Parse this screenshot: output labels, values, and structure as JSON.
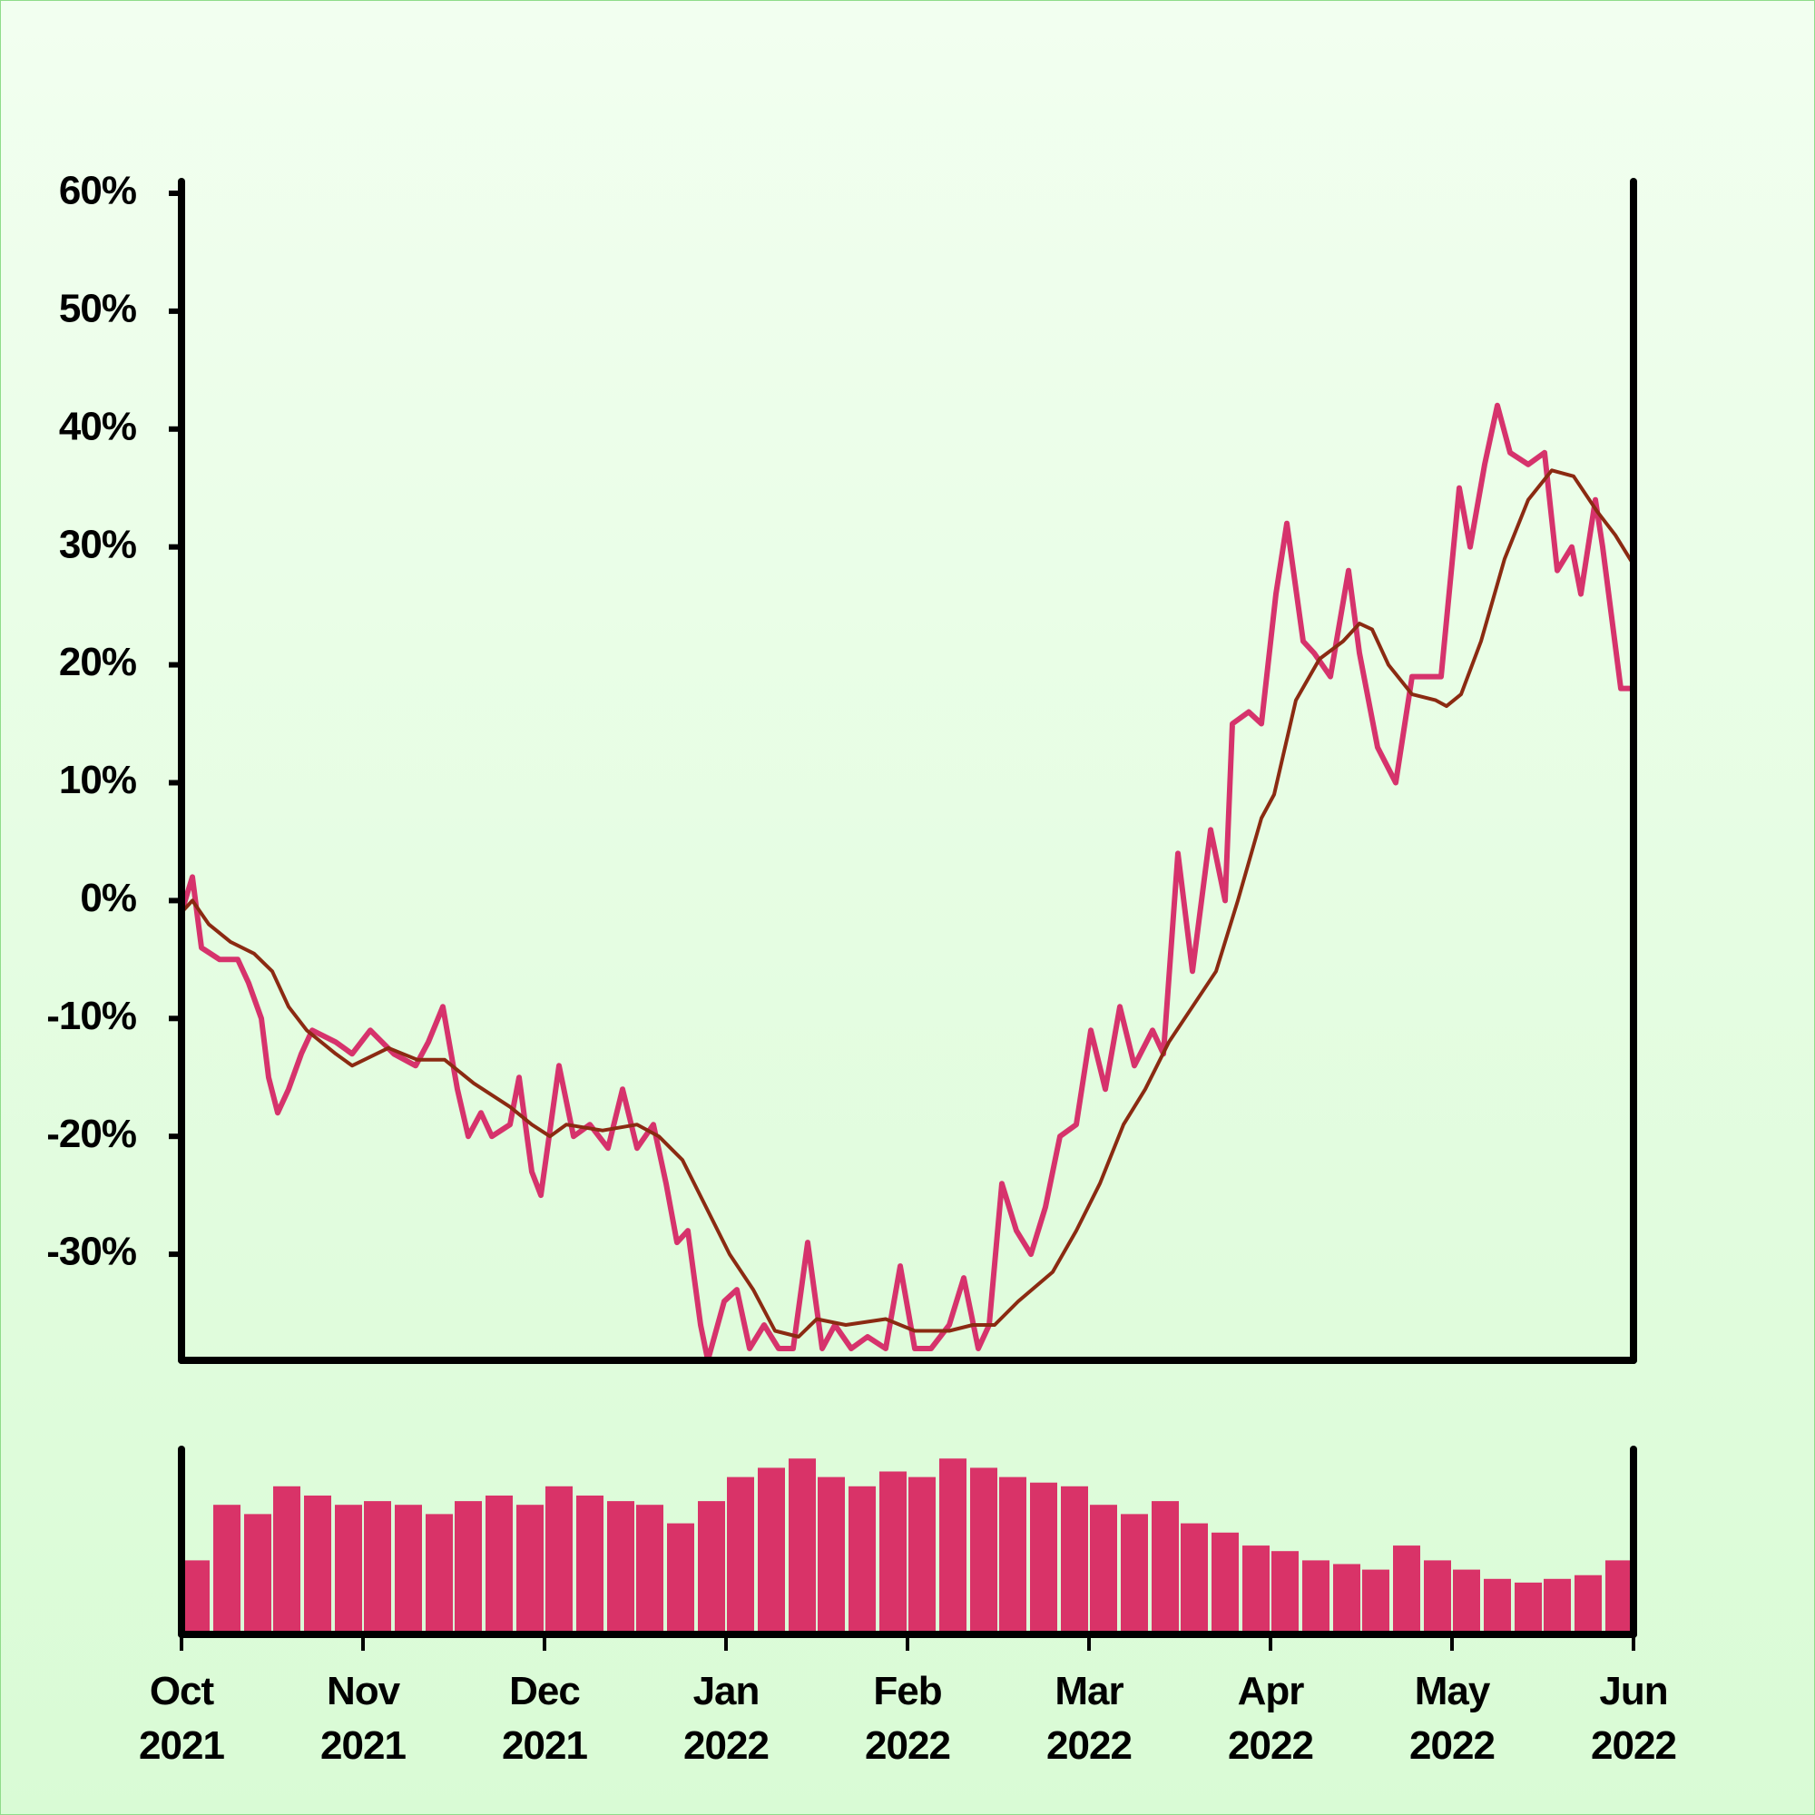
{
  "chart_data": [
    {
      "type": "line",
      "xlim": [
        0,
        8
      ],
      "ylim": [
        -39,
        61
      ],
      "yticks": [
        {
          "value": -30,
          "label": "-30%"
        },
        {
          "value": -20,
          "label": "-20%"
        },
        {
          "value": -10,
          "label": "-10%"
        },
        {
          "value": 0,
          "label": "0%"
        },
        {
          "value": 10,
          "label": "10%"
        },
        {
          "value": 20,
          "label": "20%"
        },
        {
          "value": 30,
          "label": "30%"
        },
        {
          "value": 40,
          "label": "40%"
        },
        {
          "value": 50,
          "label": "50%"
        },
        {
          "value": 60,
          "label": "60%"
        }
      ],
      "series": [
        {
          "color": "#d6336c",
          "width": 6,
          "x": [
            0.0,
            0.06,
            0.11,
            0.21,
            0.31,
            0.37,
            0.44,
            0.48,
            0.53,
            0.59,
            0.66,
            0.72,
            0.85,
            0.94,
            1.04,
            1.17,
            1.29,
            1.36,
            1.44,
            1.52,
            1.58,
            1.65,
            1.71,
            1.81,
            1.86,
            1.93,
            1.98,
            2.08,
            2.16,
            2.25,
            2.35,
            2.43,
            2.51,
            2.6,
            2.67,
            2.73,
            2.79,
            2.86,
            2.9,
            2.99,
            3.06,
            3.13,
            3.21,
            3.29,
            3.37,
            3.45,
            3.53,
            3.6,
            3.69,
            3.78,
            3.88,
            3.96,
            4.04,
            4.13,
            4.23,
            4.31,
            4.39,
            4.45,
            4.52,
            4.6,
            4.68,
            4.76,
            4.84,
            4.93,
            5.01,
            5.09,
            5.17,
            5.25,
            5.35,
            5.41,
            5.49,
            5.57,
            5.67,
            5.75,
            5.79,
            5.88,
            5.95,
            6.03,
            6.09,
            6.18,
            6.24,
            6.33,
            6.43,
            6.49,
            6.59,
            6.69,
            6.78,
            6.88,
            6.94,
            7.04,
            7.1,
            7.18,
            7.25,
            7.32,
            7.42,
            7.51,
            7.58,
            7.66,
            7.71,
            7.79,
            7.83,
            7.93,
            8.0
          ],
          "values": [
            -1,
            2,
            -4,
            -5,
            -5,
            -7,
            -10,
            -15,
            -18,
            -16,
            -13,
            -11,
            -12,
            -13,
            -11,
            -13,
            -14,
            -12,
            -9,
            -16,
            -20,
            -18,
            -20,
            -19,
            -15,
            -23,
            -25,
            -14,
            -20,
            -19,
            -21,
            -16,
            -21,
            -19,
            -24,
            -29,
            -28,
            -36,
            -39,
            -34,
            -33,
            -38,
            -36,
            -38,
            -38,
            -29,
            -38,
            -36,
            -38,
            -37,
            -38,
            -31,
            -38,
            -38,
            -36,
            -32,
            -38,
            -36,
            -24,
            -28,
            -30,
            -26,
            -20,
            -19,
            -11,
            -16,
            -9,
            -14,
            -11,
            -13,
            4,
            -6,
            6,
            0,
            15,
            16,
            15,
            26,
            32,
            22,
            21,
            19,
            28,
            21,
            13,
            10,
            19,
            19,
            19,
            35,
            30,
            37,
            42,
            38,
            37,
            38,
            28,
            30,
            26,
            34,
            30,
            18,
            18
          ]
        },
        {
          "color": "#8b2a12",
          "width": 4,
          "x": [
            0.0,
            0.06,
            0.15,
            0.27,
            0.4,
            0.5,
            0.59,
            0.69,
            0.85,
            0.94,
            1.14,
            1.3,
            1.45,
            1.61,
            1.81,
            1.93,
            2.03,
            2.12,
            2.32,
            2.51,
            2.63,
            2.76,
            2.89,
            3.02,
            3.15,
            3.27,
            3.4,
            3.5,
            3.66,
            3.88,
            4.04,
            4.23,
            4.36,
            4.48,
            4.61,
            4.8,
            4.93,
            5.06,
            5.19,
            5.31,
            5.44,
            5.57,
            5.7,
            5.82,
            5.95,
            6.02,
            6.08,
            6.14,
            6.27,
            6.4,
            6.49,
            6.56,
            6.65,
            6.78,
            6.91,
            6.97,
            7.05,
            7.16,
            7.29,
            7.42,
            7.55,
            7.67,
            7.8,
            7.9,
            8.0
          ],
          "values": [
            -1,
            0,
            -2,
            -3.5,
            -4.5,
            -6,
            -9,
            -11,
            -13,
            -14,
            -12.5,
            -13.5,
            -13.5,
            -15.5,
            -17.5,
            -19,
            -20,
            -19,
            -19.5,
            -19,
            -20,
            -22,
            -26,
            -30,
            -33,
            -36.5,
            -37,
            -35.5,
            -36,
            -35.5,
            -36.5,
            -36.5,
            -36,
            -36,
            -34,
            -31.5,
            -28,
            -24,
            -19,
            -16,
            -12,
            -9,
            -6,
            0,
            7,
            9,
            13,
            17,
            20.5,
            22,
            23.5,
            23,
            20,
            17.5,
            17,
            16.5,
            17.5,
            22,
            29,
            34,
            36.5,
            36,
            33,
            31,
            28.5
          ]
        }
      ]
    },
    {
      "type": "bar",
      "color": "#d93368",
      "xlim": [
        0,
        8
      ],
      "ylim": [
        0,
        100
      ],
      "xticks": [
        {
          "value": 0,
          "label": "Oct 2021"
        },
        {
          "value": 1,
          "label": "Nov 2021"
        },
        {
          "value": 2,
          "label": "Dec 2021"
        },
        {
          "value": 3,
          "label": "Jan 2022"
        },
        {
          "value": 4,
          "label": "Feb 2022"
        },
        {
          "value": 5,
          "label": "Mar 2022"
        },
        {
          "value": 6,
          "label": "Apr 2022"
        },
        {
          "value": 7,
          "label": "May 2022"
        },
        {
          "value": 8,
          "label": "Jun 2022"
        }
      ],
      "x": [
        0.08,
        0.25,
        0.42,
        0.58,
        0.75,
        0.92,
        1.08,
        1.25,
        1.42,
        1.58,
        1.75,
        1.92,
        2.08,
        2.25,
        2.42,
        2.58,
        2.75,
        2.92,
        3.08,
        3.25,
        3.42,
        3.58,
        3.75,
        3.92,
        4.08,
        4.25,
        4.42,
        4.58,
        4.75,
        4.92,
        5.08,
        5.25,
        5.42,
        5.58,
        5.75,
        5.92,
        6.08,
        6.25,
        6.42,
        6.58,
        6.75,
        6.92,
        7.08,
        7.25,
        7.42,
        7.58,
        7.75,
        7.92
      ],
      "values": [
        40,
        70,
        65,
        80,
        75,
        70,
        72,
        70,
        65,
        72,
        75,
        70,
        80,
        75,
        72,
        70,
        60,
        72,
        85,
        90,
        95,
        85,
        80,
        88,
        85,
        95,
        90,
        85,
        82,
        80,
        70,
        65,
        72,
        60,
        55,
        48,
        45,
        40,
        38,
        35,
        48,
        40,
        35,
        30,
        28,
        30,
        32,
        40
      ]
    }
  ]
}
